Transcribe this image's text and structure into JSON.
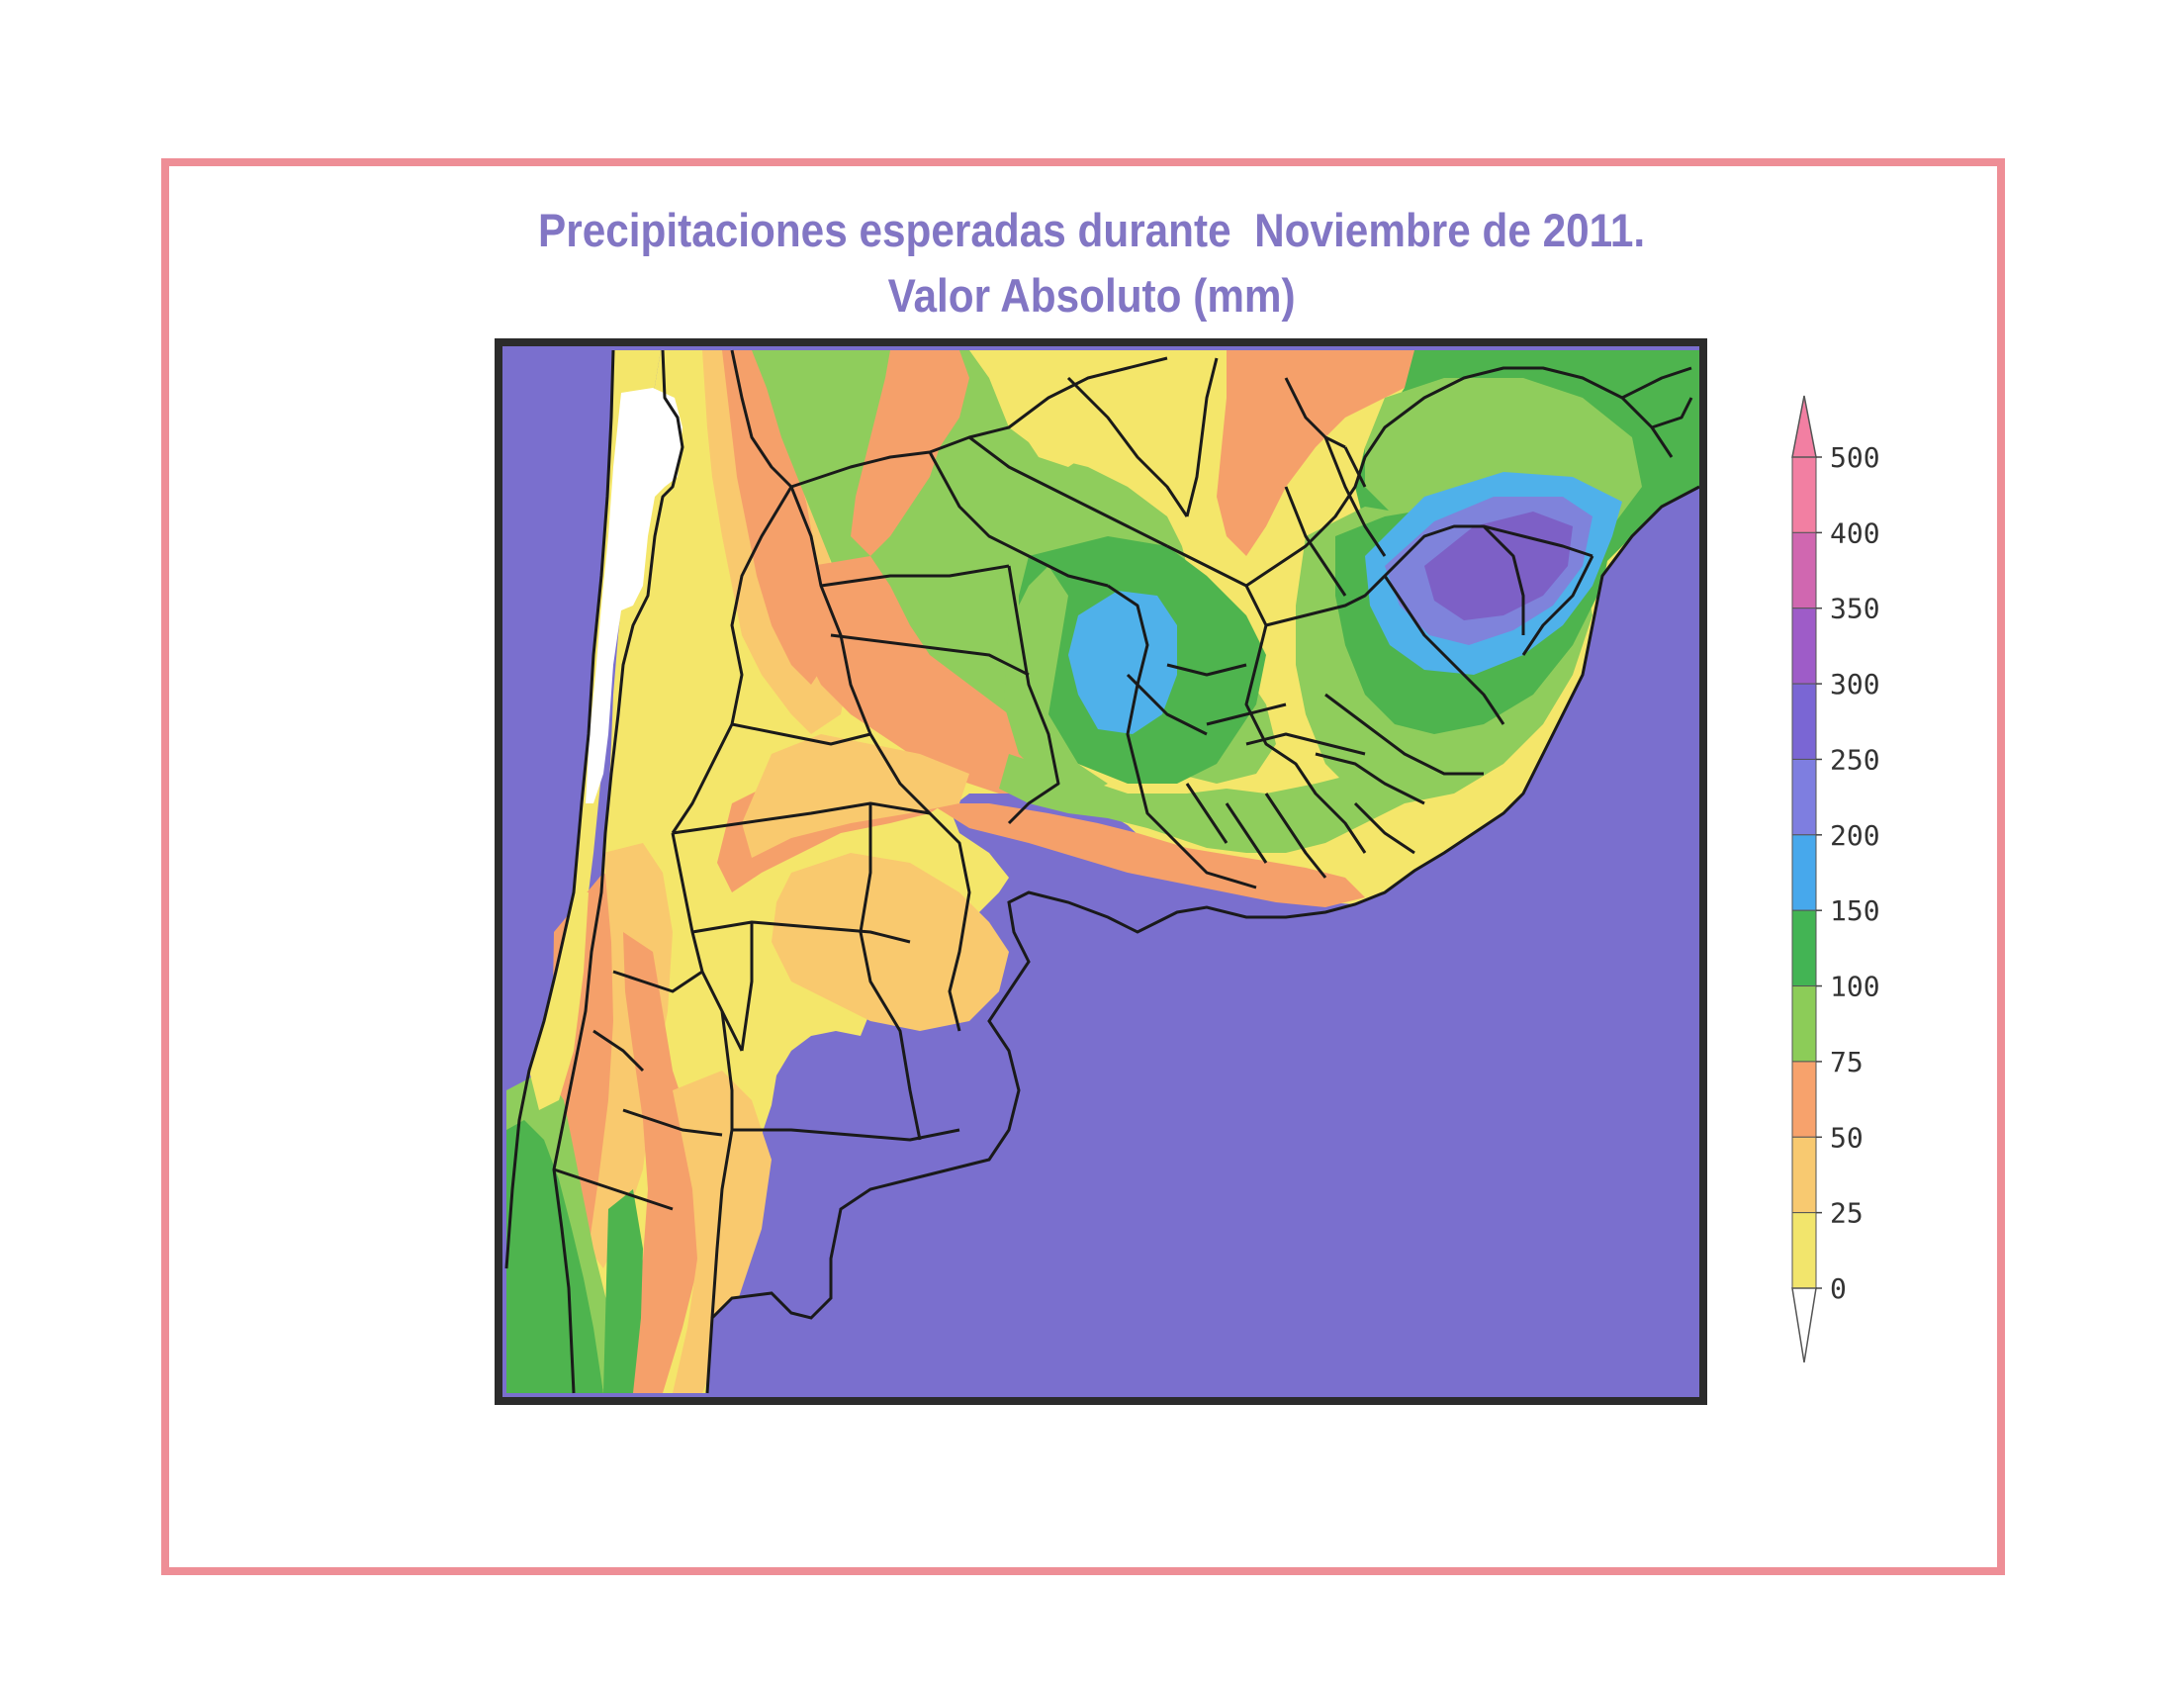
{
  "title": {
    "line1": "Precipitaciones esperadas durante  Noviembre de 2011.",
    "line2": "Valor Absoluto (mm)"
  },
  "colors": {
    "frame": "#ee8e96",
    "title": "#8276c4",
    "ocean": "#7a6fce",
    "yellow": "#f4e66a",
    "light_orange": "#f9c96e",
    "orange": "#f5a06a",
    "light_green": "#8fcd5c",
    "green": "#4eb44e",
    "cyan": "#4fb1ea",
    "blue": "#7f83db",
    "violet": "#7d60c6",
    "white_area": "#ffffff"
  },
  "legend": {
    "labels": [
      "500",
      "400",
      "350",
      "300",
      "250",
      "200",
      "150",
      "100",
      "75",
      "50",
      "25",
      "0"
    ],
    "band_colors": [
      "#f27fa2",
      "#d067b0",
      "#9e5cc8",
      "#7a66d4",
      "#7e7ee0",
      "#47a8ec",
      "#43b454",
      "#8ccc58",
      "#f7a26c",
      "#f8c970",
      "#f2e56c"
    ],
    "unit": "mm"
  }
}
